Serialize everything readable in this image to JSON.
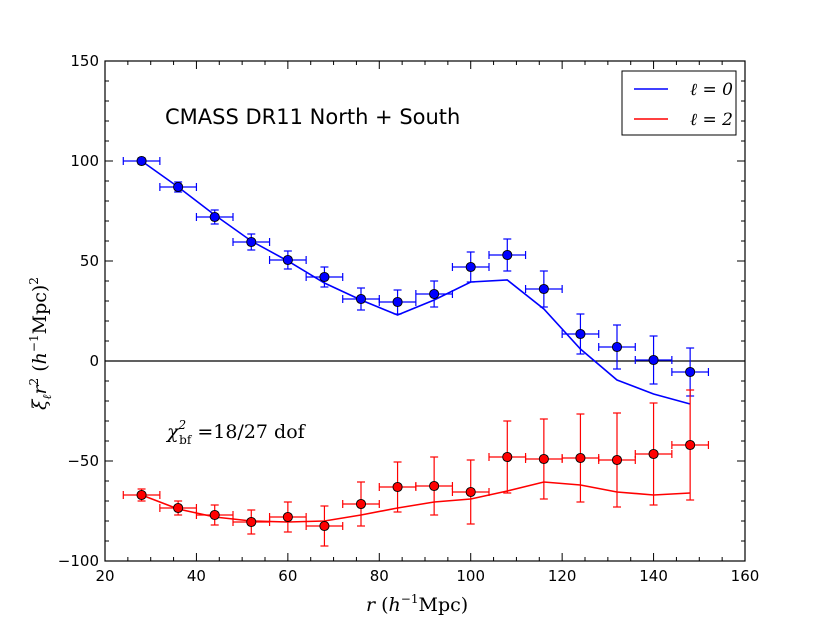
{
  "chart_data": {
    "type": "line",
    "title": "CMASS DR11 North + South",
    "annotation": "χ²_bf = 18/27 dof",
    "annotation_main": "χ",
    "annotation_sup": "2",
    "annotation_sub": "bf",
    "annotation_rest": " =18/27 dof",
    "xlabel": "r (h⁻¹ Mpc)",
    "xlabel_var": "r",
    "xlabel_paren_open": " (",
    "xlabel_h": "h",
    "xlabel_sup": "−1",
    "xlabel_unit": "Mpc)",
    "ylabel": "ξℓ r² (h⁻¹ Mpc)²",
    "ylabel_xi": "ξ",
    "ylabel_sub": "ℓ",
    "ylabel_r": "r",
    "ylabel_sup2": "2",
    "ylabel_paren_open": "  (",
    "ylabel_h": "h",
    "ylabel_sup": "−1",
    "ylabel_unit": "Mpc)",
    "ylabel_sup_end": "2",
    "xlim": [
      20,
      160
    ],
    "ylim": [
      -100,
      150
    ],
    "xticks": [
      20,
      40,
      60,
      80,
      100,
      120,
      140,
      160
    ],
    "yticks": [
      -100,
      -50,
      0,
      50,
      100,
      150
    ],
    "xtick_labels": [
      "20",
      "40",
      "60",
      "80",
      "100",
      "120",
      "140",
      "160"
    ],
    "ytick_labels": [
      "−100",
      "−50",
      "0",
      "50",
      "100",
      "150"
    ],
    "zero_line": 0,
    "legend_position": "top-right",
    "series": [
      {
        "name": "ℓ=0",
        "legend_label": "ℓ = 0",
        "color": "#0000ff",
        "points": {
          "x": [
            28,
            36,
            44,
            52,
            60,
            68,
            76,
            84,
            92,
            100,
            108,
            116,
            124,
            132,
            140,
            148
          ],
          "y": [
            100,
            87,
            72,
            59.5,
            50.5,
            42,
            31,
            29.5,
            33.5,
            47,
            53,
            36,
            13.5,
            7,
            0.5,
            -5.5
          ],
          "yerr": [
            1.5,
            2.5,
            3.5,
            4,
            4.5,
            5,
            5.5,
            6,
            6.5,
            7.5,
            8,
            9,
            10,
            11,
            12,
            12
          ]
        },
        "model": {
          "x": [
            28,
            36,
            44,
            52,
            60,
            68,
            76,
            84,
            92,
            100,
            108,
            116,
            124,
            132,
            140,
            148
          ],
          "y": [
            100,
            87,
            73,
            60,
            50,
            39,
            30.5,
            23,
            30.5,
            39.5,
            40.5,
            26,
            6,
            -9.5,
            -16.5,
            -21.5
          ]
        }
      },
      {
        "name": "ℓ=2",
        "legend_label": "ℓ = 2",
        "color": "#ff0000",
        "points": {
          "x": [
            28,
            36,
            44,
            52,
            60,
            68,
            76,
            84,
            92,
            100,
            108,
            116,
            124,
            132,
            140,
            148
          ],
          "y": [
            -67,
            -73.5,
            -77,
            -80.5,
            -78,
            -82.5,
            -71.5,
            -63,
            -62.5,
            -65.5,
            -48,
            -49,
            -48.5,
            -49.5,
            -46.5,
            -42
          ],
          "yerr": [
            3,
            3.5,
            5,
            6,
            7.5,
            10,
            11,
            12.5,
            14.5,
            16,
            18,
            20,
            22,
            23.5,
            25.5,
            27.5
          ]
        },
        "model": {
          "x": [
            28,
            36,
            44,
            52,
            60,
            68,
            76,
            84,
            92,
            100,
            108,
            116,
            124,
            132,
            140,
            148
          ],
          "y": [
            -67,
            -74,
            -78,
            -80,
            -80.5,
            -80,
            -77,
            -73.5,
            -70.5,
            -69,
            -65,
            -60.5,
            -62,
            -65.5,
            -67,
            -66
          ]
        }
      }
    ]
  }
}
